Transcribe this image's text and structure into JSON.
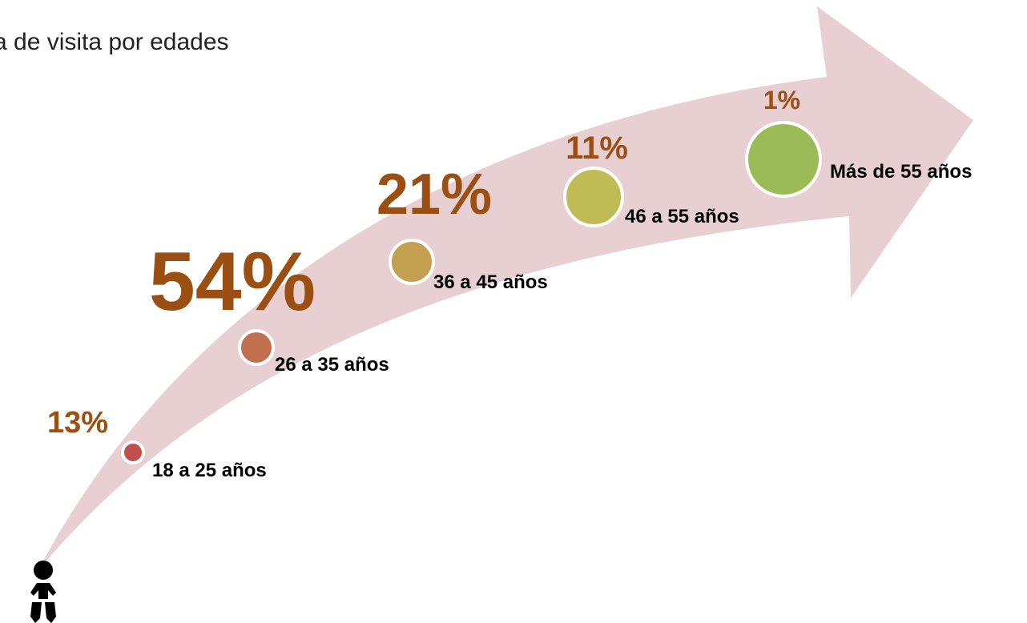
{
  "title": "a de visita por edades",
  "groups": [
    {
      "label": "18 a 25 años",
      "percent": "13%"
    },
    {
      "label": "26 a 35 años",
      "percent": "54%"
    },
    {
      "label": "36 a 45 años",
      "percent": "21%"
    },
    {
      "label": "46 a 55 años",
      "percent": "11%"
    },
    {
      "label": "Más de 55 años",
      "percent": "1%"
    }
  ]
}
